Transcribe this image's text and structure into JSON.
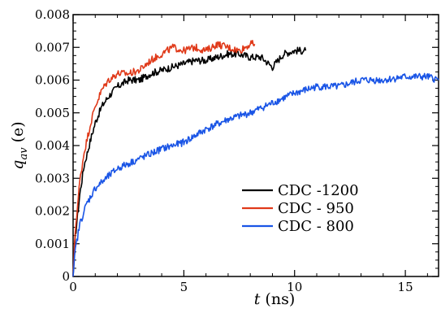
{
  "chart_data": {
    "type": "line",
    "xlabel_var": "t",
    "xlabel_unit": " (ns)",
    "ylabel_var": "q",
    "ylabel_sub": "av",
    "ylabel_unit": " (e)",
    "xlim": [
      0,
      16.5
    ],
    "ylim": [
      0,
      0.008
    ],
    "x_ticks": [
      "0",
      "5",
      "10",
      "15"
    ],
    "y_ticks": [
      "0",
      "0.001",
      "0.002",
      "0.003",
      "0.004",
      "0.005",
      "0.006",
      "0.007",
      "0.008"
    ],
    "grid": false,
    "legend_position": "center-right",
    "series": [
      {
        "name": "CDC -1200",
        "color": "#000000",
        "points": [
          [
            0,
            0
          ],
          [
            0.1,
            0.0012
          ],
          [
            0.3,
            0.0025
          ],
          [
            0.5,
            0.0034
          ],
          [
            0.8,
            0.0042
          ],
          [
            1.0,
            0.0047
          ],
          [
            1.3,
            0.0052
          ],
          [
            1.6,
            0.0055
          ],
          [
            2.0,
            0.0058
          ],
          [
            2.5,
            0.006
          ],
          [
            3.0,
            0.006
          ],
          [
            3.5,
            0.0062
          ],
          [
            4.0,
            0.0063
          ],
          [
            4.5,
            0.0064
          ],
          [
            5.0,
            0.0065
          ],
          [
            5.5,
            0.0066
          ],
          [
            6.0,
            0.0066
          ],
          [
            6.5,
            0.0067
          ],
          [
            7.0,
            0.0068
          ],
          [
            7.5,
            0.0068
          ],
          [
            8.0,
            0.0067
          ],
          [
            8.5,
            0.0067
          ],
          [
            9.0,
            0.0064
          ],
          [
            9.5,
            0.0068
          ],
          [
            10.0,
            0.0069
          ],
          [
            10.5,
            0.0069
          ]
        ]
      },
      {
        "name": "CDC - 950",
        "color": "#e03a1a",
        "points": [
          [
            0,
            0
          ],
          [
            0.1,
            0.0014
          ],
          [
            0.3,
            0.0029
          ],
          [
            0.5,
            0.0038
          ],
          [
            0.8,
            0.0047
          ],
          [
            1.0,
            0.0052
          ],
          [
            1.3,
            0.0057
          ],
          [
            1.6,
            0.006
          ],
          [
            2.0,
            0.0062
          ],
          [
            2.5,
            0.0062
          ],
          [
            3.0,
            0.0063
          ],
          [
            3.5,
            0.0066
          ],
          [
            4.0,
            0.0068
          ],
          [
            4.5,
            0.007
          ],
          [
            5.0,
            0.0069
          ],
          [
            5.5,
            0.007
          ],
          [
            6.0,
            0.0069
          ],
          [
            6.5,
            0.0071
          ],
          [
            7.0,
            0.007
          ],
          [
            7.5,
            0.0069
          ],
          [
            8.0,
            0.0071
          ],
          [
            8.2,
            0.0071
          ]
        ]
      },
      {
        "name": "CDC - 800",
        "color": "#1a55e6",
        "points": [
          [
            0,
            0
          ],
          [
            0.1,
            0.0008
          ],
          [
            0.3,
            0.0016
          ],
          [
            0.6,
            0.0022
          ],
          [
            1.0,
            0.0027
          ],
          [
            1.5,
            0.003
          ],
          [
            2.0,
            0.0033
          ],
          [
            3.0,
            0.0036
          ],
          [
            4.0,
            0.0039
          ],
          [
            5.0,
            0.0041
          ],
          [
            6.0,
            0.0045
          ],
          [
            7.0,
            0.0048
          ],
          [
            8.0,
            0.005
          ],
          [
            9.0,
            0.0053
          ],
          [
            10.0,
            0.0056
          ],
          [
            11.0,
            0.0058
          ],
          [
            12.0,
            0.0058
          ],
          [
            13.0,
            0.006
          ],
          [
            14.0,
            0.006
          ],
          [
            15.0,
            0.0061
          ],
          [
            16.0,
            0.0061
          ],
          [
            16.5,
            0.006
          ]
        ]
      }
    ]
  }
}
